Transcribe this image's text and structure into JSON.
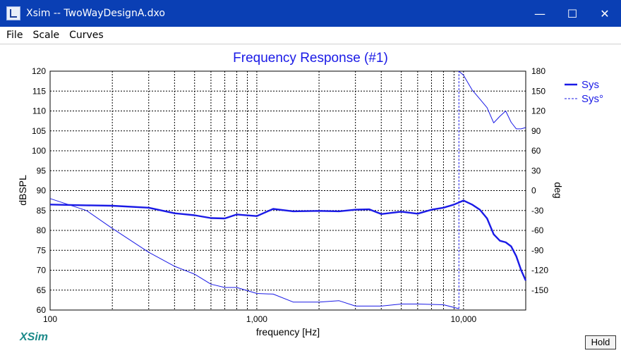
{
  "window": {
    "title": "Xsim -- TwoWayDesignA.dxo",
    "minimize_glyph": "—",
    "maximize_glyph": "☐",
    "close_glyph": "✕"
  },
  "menu": [
    "File",
    "Scale",
    "Curves"
  ],
  "app_logo": "XSim",
  "hold_label": "Hold",
  "colors": {
    "titlebar": "#0a3fb4",
    "curve": "#1a1ae6",
    "logo": "#1c8a8a"
  },
  "chart_data": {
    "type": "line",
    "title": "Frequency Response (#1)",
    "xlabel": "frequency [Hz]",
    "ylabel": "dBSPL",
    "y2label": "deg",
    "xscale": "log",
    "xlim": [
      100,
      20000
    ],
    "ylim": [
      60,
      120
    ],
    "y2lim": [
      -180,
      180
    ],
    "x_tick_labels": [
      "100",
      "1,000",
      "10,000"
    ],
    "y_ticks": [
      60,
      65,
      70,
      75,
      80,
      85,
      90,
      95,
      100,
      105,
      110,
      115,
      120
    ],
    "y2_ticks": [
      -150,
      -120,
      -90,
      -60,
      -30,
      0,
      30,
      60,
      90,
      120,
      150,
      180
    ],
    "grid": true,
    "legend": {
      "placement": "top-right",
      "entries": [
        "Sys",
        "Sys°"
      ]
    },
    "series": [
      {
        "name": "Sys",
        "axis": "left",
        "x": [
          100,
          150,
          200,
          300,
          400,
          500,
          600,
          700,
          800,
          1000,
          1200,
          1500,
          2000,
          2500,
          3000,
          3500,
          4000,
          5000,
          6000,
          7000,
          8000,
          9000,
          10000,
          11000,
          12000,
          13000,
          14000,
          15000,
          16000,
          17000,
          18000,
          19000,
          20000
        ],
        "values": [
          86.5,
          86.3,
          86.2,
          85.7,
          84.3,
          83.8,
          83.1,
          83.0,
          84.0,
          83.6,
          85.4,
          84.8,
          84.9,
          84.8,
          85.2,
          85.3,
          84.1,
          84.7,
          84.2,
          85.2,
          85.7,
          86.5,
          87.5,
          86.5,
          85.2,
          83.0,
          79.0,
          77.4,
          77.0,
          76.0,
          73.5,
          70.0,
          67.4
        ]
      },
      {
        "name": "Sys°",
        "axis": "right",
        "x": [
          100,
          150,
          200,
          300,
          400,
          500,
          600,
          700,
          800,
          1000,
          1200,
          1500,
          2000,
          2500,
          3000,
          4000,
          5000,
          6000,
          8000,
          9500
        ],
        "values": [
          -12,
          -30,
          -57,
          -93,
          -114,
          -126,
          -141,
          -146,
          -146,
          -155,
          -156,
          -168,
          -168,
          -166,
          -174,
          -174,
          -171,
          -171,
          -172,
          -178
        ]
      },
      {
        "name": "Sys°",
        "axis": "right",
        "x": [
          9500,
          10000,
          11000,
          12000,
          13000,
          14000,
          15000,
          16000,
          17000,
          18000,
          19000,
          20000
        ],
        "values": [
          180,
          174,
          152,
          138,
          125,
          102,
          112,
          120,
          103,
          93,
          93,
          95
        ]
      }
    ]
  }
}
